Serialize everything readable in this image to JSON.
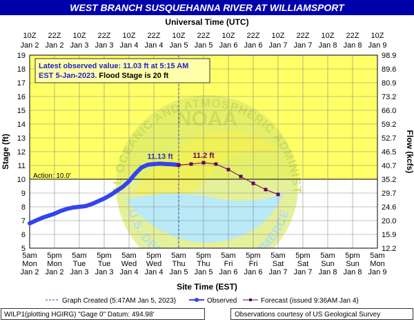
{
  "chart_data": {
    "type": "line",
    "title": "WEST BRANCH SUSQUEHANNA RIVER AT WILLIAMSPORT",
    "top_axis_title": "Universal Time (UTC)",
    "bottom_axis_title": "Site Time (EST)",
    "ylabel_left": "Stage (ft)",
    "ylabel_right": "Flow (kcfs)",
    "ylim": [
      5,
      19
    ],
    "xlim": [
      0,
      14
    ],
    "y_ticks": [
      "5",
      "6",
      "7",
      "8",
      "9",
      "10",
      "11",
      "12",
      "13",
      "14",
      "15",
      "16",
      "17",
      "18",
      "19"
    ],
    "flow_ticks": [
      "12.2",
      "15.9",
      "20.0",
      "24.6",
      "29.7",
      "35.2",
      "40.7",
      "46.5",
      "52.7",
      "59.2",
      "66.0",
      "73.2",
      "80.9",
      "89.6",
      "98.9"
    ],
    "utc_ticks": [
      [
        "10Z",
        "Jan 2"
      ],
      [
        "22Z",
        "Jan 2"
      ],
      [
        "10Z",
        "Jan 3"
      ],
      [
        "22Z",
        "Jan 3"
      ],
      [
        "10Z",
        "Jan 4"
      ],
      [
        "22Z",
        "Jan 4"
      ],
      [
        "10Z",
        "Jan 5"
      ],
      [
        "22Z",
        "Jan 5"
      ],
      [
        "10Z",
        "Jan 6"
      ],
      [
        "22Z",
        "Jan 6"
      ],
      [
        "10Z",
        "Jan 7"
      ],
      [
        "22Z",
        "Jan 7"
      ],
      [
        "10Z",
        "Jan 8"
      ],
      [
        "22Z",
        "Jan 8"
      ],
      [
        "10Z",
        "Jan 9"
      ]
    ],
    "est_ticks": [
      [
        "5am",
        "Mon",
        "Jan 2"
      ],
      [
        "5pm",
        "Mon",
        "Jan 2"
      ],
      [
        "5am",
        "Tue",
        "Jan 3"
      ],
      [
        "5pm",
        "Tue",
        "Jan 3"
      ],
      [
        "5am",
        "Wed",
        "Jan 4"
      ],
      [
        "5pm",
        "Wed",
        "Jan 4"
      ],
      [
        "5am",
        "Thu",
        "Jan 5"
      ],
      [
        "5pm",
        "Thu",
        "Jan 5"
      ],
      [
        "5am",
        "Fri",
        "Jan 6"
      ],
      [
        "5pm",
        "Fri",
        "Jan 6"
      ],
      [
        "5am",
        "Sat",
        "Jan 7"
      ],
      [
        "5pm",
        "Sat",
        "Jan 7"
      ],
      [
        "5am",
        "Sun",
        "Jan 8"
      ],
      [
        "5pm",
        "Sun",
        "Jan 8"
      ],
      [
        "5am",
        "Mon",
        "Jan 9"
      ]
    ],
    "action_stage": 10.0,
    "action_label": "Action: 10.0'",
    "flood_stage": 20,
    "colors": {
      "flood_zone": "#ffff66",
      "observed": "#3344ee",
      "forecast": "#660066",
      "title_bg": "#0000aa",
      "peak_obs_label": "#2233cc",
      "peak_fcst_label": "#660066"
    },
    "series": [
      {
        "name": "Observed",
        "x": [
          0.0,
          0.25,
          0.5,
          0.75,
          1.0,
          1.25,
          1.5,
          1.75,
          2.0,
          2.25,
          2.5,
          2.75,
          3.0,
          3.25,
          3.5,
          3.75,
          4.0,
          4.25,
          4.5,
          4.75,
          5.0,
          5.25,
          5.5,
          5.75,
          6.0
        ],
        "y": [
          6.8,
          7.0,
          7.2,
          7.35,
          7.5,
          7.7,
          7.85,
          7.95,
          8.0,
          8.05,
          8.2,
          8.4,
          8.6,
          8.85,
          9.15,
          9.45,
          9.85,
          10.4,
          10.85,
          11.05,
          11.1,
          11.13,
          11.1,
          11.08,
          11.03
        ]
      },
      {
        "name": "Forecast",
        "x": [
          6.0,
          6.5,
          7.0,
          7.5,
          8.0,
          8.5,
          9.0,
          9.5,
          10.0
        ],
        "y": [
          11.03,
          11.1,
          11.2,
          11.1,
          10.7,
          10.2,
          9.7,
          9.25,
          8.9
        ]
      }
    ],
    "peak_observed_label": "11.13 ft",
    "peak_forecast_label": "11.2 ft",
    "info_box": {
      "line1": "Latest observed value: 11.03 ft at 5:15 AM",
      "line2a": "EST 5-Jan-2023.",
      "line2b": " Flood Stage is 20 ft"
    },
    "legend": {
      "created": "Graph Created (5:47AM Jan 5, 2023)",
      "observed": "Observed",
      "forecast": "Forecast (issued 9:36AM Jan 4)"
    },
    "footer_left": "WILP1(plotting HGIRG) \"Gage 0\" Datum: 494.98'",
    "footer_right": "Observations courtesy of US Geological Survey",
    "watermark": {
      "top_text": "NATIONAL OCEANIC AND ATMOSPHERIC ADMINISTRATION",
      "bottom_text": "U.S. DEPARTMENT OF COMMERCE",
      "center": "NOAA"
    }
  }
}
